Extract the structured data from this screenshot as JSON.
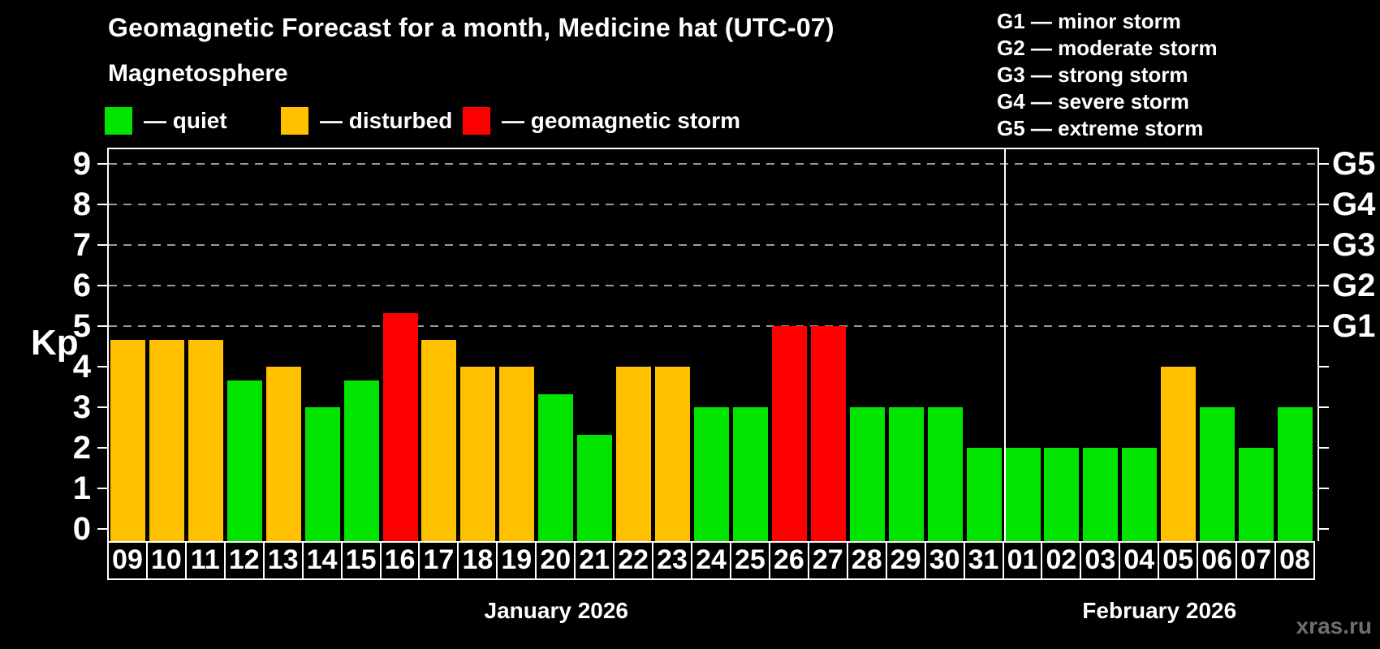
{
  "title": "Geomagnetic Forecast for a month, Medicine hat (UTC-07)",
  "subtitle": "Magnetosphere",
  "kp_axis_label": "Kp",
  "watermark": "xras.ru",
  "colors": {
    "quiet": "#00e400",
    "disturbed": "#ffc000",
    "storm": "#ff0000",
    "background": "#000000",
    "gridline": "#9a9a9a",
    "axis": "#ffffff",
    "watermark": "#6f6f6f"
  },
  "legend": {
    "items": [
      {
        "name": "quiet",
        "label": "— quiet",
        "color": "#00e400"
      },
      {
        "name": "disturbed",
        "label": "— disturbed",
        "color": "#ffc000"
      },
      {
        "name": "storm",
        "label": "— geomagnetic storm",
        "color": "#ff0000"
      }
    ],
    "x_positions": [
      129,
      346,
      570
    ]
  },
  "g_legend": [
    "G1 — minor storm",
    "G2 — moderate storm",
    "G3 — strong storm",
    "G4 — severe storm",
    "G5 — extreme storm"
  ],
  "chart_data": {
    "type": "bar",
    "title": "Geomagnetic Forecast for a month, Medicine hat (UTC-07)",
    "subtitle": "Magnetosphere",
    "ylabel": "Kp",
    "ylim": [
      0,
      9
    ],
    "yticks": [
      0,
      1,
      2,
      3,
      4,
      5,
      6,
      7,
      8,
      9
    ],
    "gridlines_at": [
      5,
      6,
      7,
      8,
      9
    ],
    "grid": "dashed horizontal at storm levels only",
    "legend_position": "top-left",
    "right_axis_labels": [
      {
        "label": "G1",
        "value": 5
      },
      {
        "label": "G2",
        "value": 6
      },
      {
        "label": "G3",
        "value": 7
      },
      {
        "label": "G4",
        "value": 8
      },
      {
        "label": "G5",
        "value": 9
      }
    ],
    "months": [
      {
        "label": "January 2026",
        "days": 23
      },
      {
        "label": "February 2026",
        "days": 8
      }
    ],
    "bars": [
      {
        "day": "09",
        "value": 4.67,
        "status": "disturbed"
      },
      {
        "day": "10",
        "value": 4.67,
        "status": "disturbed"
      },
      {
        "day": "11",
        "value": 4.67,
        "status": "disturbed"
      },
      {
        "day": "12",
        "value": 3.67,
        "status": "quiet"
      },
      {
        "day": "13",
        "value": 4.0,
        "status": "disturbed"
      },
      {
        "day": "14",
        "value": 3.0,
        "status": "quiet"
      },
      {
        "day": "15",
        "value": 3.67,
        "status": "quiet"
      },
      {
        "day": "16",
        "value": 5.33,
        "status": "storm"
      },
      {
        "day": "17",
        "value": 4.67,
        "status": "disturbed"
      },
      {
        "day": "18",
        "value": 4.0,
        "status": "disturbed"
      },
      {
        "day": "19",
        "value": 4.0,
        "status": "disturbed"
      },
      {
        "day": "20",
        "value": 3.33,
        "status": "quiet"
      },
      {
        "day": "21",
        "value": 2.33,
        "status": "quiet"
      },
      {
        "day": "22",
        "value": 4.0,
        "status": "disturbed"
      },
      {
        "day": "23",
        "value": 4.0,
        "status": "disturbed"
      },
      {
        "day": "24",
        "value": 3.0,
        "status": "quiet"
      },
      {
        "day": "25",
        "value": 3.0,
        "status": "quiet"
      },
      {
        "day": "26",
        "value": 5.0,
        "status": "storm"
      },
      {
        "day": "27",
        "value": 5.0,
        "status": "storm"
      },
      {
        "day": "28",
        "value": 3.0,
        "status": "quiet"
      },
      {
        "day": "29",
        "value": 3.0,
        "status": "quiet"
      },
      {
        "day": "30",
        "value": 3.0,
        "status": "quiet"
      },
      {
        "day": "31",
        "value": 2.0,
        "status": "quiet"
      },
      {
        "day": "01",
        "value": 2.0,
        "status": "quiet"
      },
      {
        "day": "02",
        "value": 2.0,
        "status": "quiet"
      },
      {
        "day": "03",
        "value": 2.0,
        "status": "quiet"
      },
      {
        "day": "04",
        "value": 2.0,
        "status": "quiet"
      },
      {
        "day": "05",
        "value": 4.0,
        "status": "disturbed"
      },
      {
        "day": "06",
        "value": 3.0,
        "status": "quiet"
      },
      {
        "day": "07",
        "value": 2.0,
        "status": "quiet"
      },
      {
        "day": "08",
        "value": 3.0,
        "status": "quiet"
      }
    ]
  }
}
